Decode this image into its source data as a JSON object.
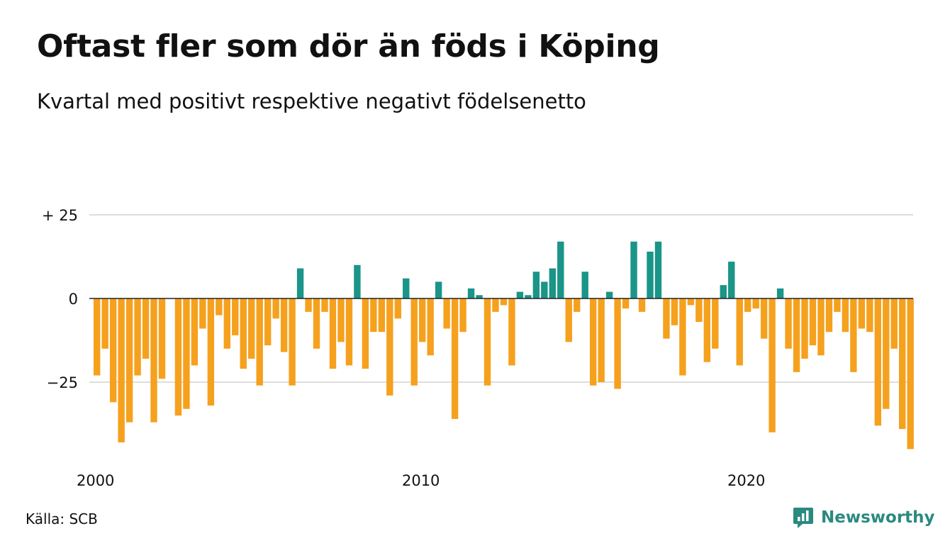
{
  "title": "Oftast fler som dör än föds i Köping",
  "subtitle": "Kvartal med positivt respektive negativt födelsenetto",
  "source": "Källa: SCB",
  "brand": {
    "name": "Newsworthy",
    "icon": "newsworthy-logo-icon"
  },
  "colors": {
    "positive": "#1a9588",
    "negative": "#f5a11e",
    "grid": "#dddddd",
    "axis": "#222222"
  },
  "chart_data": {
    "type": "bar",
    "title": "Oftast fler som dör än föds i Köping",
    "subtitle": "Kvartal med positivt respektive negativt födelsenetto",
    "xlabel": "",
    "ylabel": "",
    "ylim": [
      -45,
      27
    ],
    "grid": true,
    "y_ticks": [
      {
        "value": 25,
        "label": "+ 25"
      },
      {
        "value": 0,
        "label": "0"
      },
      {
        "value": -25,
        "label": "−25"
      }
    ],
    "x_ticks": [
      {
        "value": 2000,
        "label": "2000"
      },
      {
        "value": 2010,
        "label": "2010"
      },
      {
        "value": 2020,
        "label": "2020"
      }
    ],
    "x_start": 2000,
    "x_end": 2025,
    "values": [
      -23,
      -15,
      -31,
      -43,
      -37,
      -23,
      -18,
      -37,
      -24,
      0,
      -35,
      -33,
      -20,
      -9,
      -32,
      -5,
      -15,
      -11,
      -21,
      -18,
      -26,
      -14,
      -6,
      -16,
      -26,
      9,
      -4,
      -15,
      -4,
      -21,
      -13,
      -20,
      10,
      -21,
      -10,
      -10,
      -29,
      -6,
      6,
      -26,
      -13,
      -17,
      5,
      -9,
      -36,
      -10,
      3,
      1,
      -26,
      -4,
      -2,
      -20,
      2,
      1,
      8,
      5,
      9,
      17,
      -13,
      -4,
      8,
      -26,
      -25,
      2,
      -27,
      -3,
      17,
      -4,
      14,
      17,
      -12,
      -8,
      -23,
      -2,
      -7,
      -19,
      -15,
      4,
      11,
      -20,
      -4,
      -3,
      -12,
      -40,
      3,
      -15,
      -22,
      -18,
      -14,
      -17,
      -10,
      -4,
      -10,
      -22,
      -9,
      -10,
      -38,
      -33,
      -15,
      -39,
      -45
    ]
  }
}
